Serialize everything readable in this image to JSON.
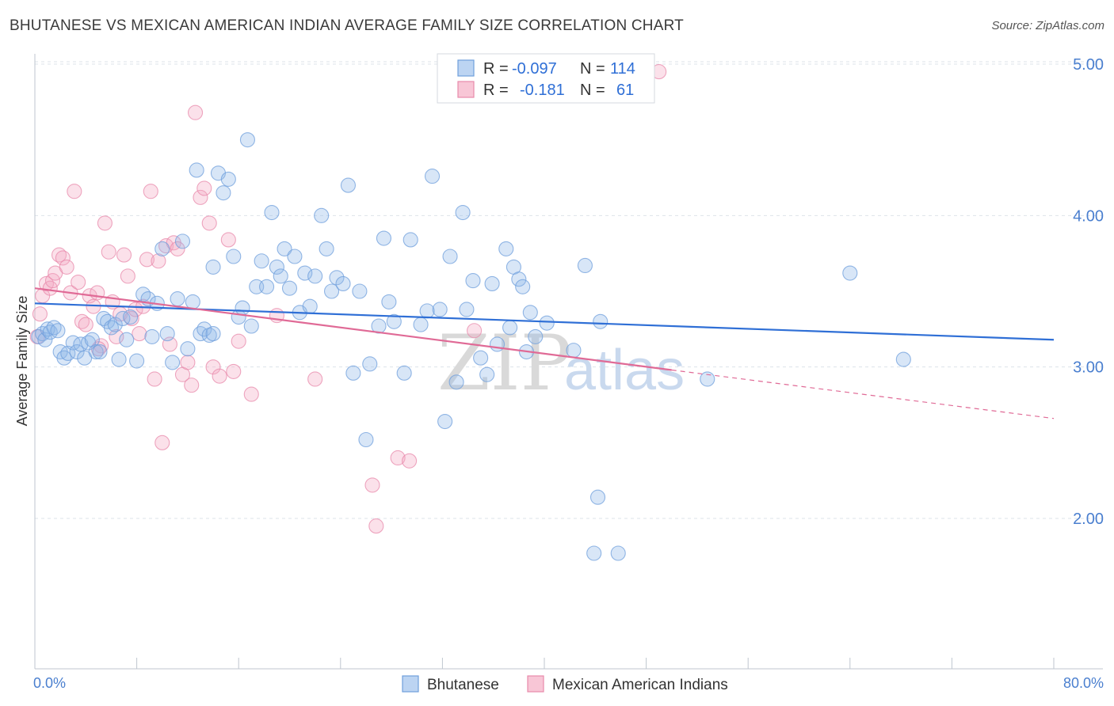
{
  "header": {
    "title": "BHUTANESE VS MEXICAN AMERICAN INDIAN AVERAGE FAMILY SIZE CORRELATION CHART",
    "source": "Source: ZipAtlas.com"
  },
  "watermark": {
    "zip": "ZIP",
    "atlas": "atlas"
  },
  "colors": {
    "blue": "#8fb6e8",
    "blue_stroke": "#6f9fdc",
    "pink": "#f3a9c2",
    "pink_stroke": "#e88aab",
    "blue_line": "#2f6fd6",
    "pink_line": "#e06a96",
    "grid": "#dde3ea",
    "tick_text": "#4a7fcf"
  },
  "legend": {
    "rows": [
      {
        "r_label": "R =",
        "r_value": "-0.097",
        "n_label": "N =",
        "n_value": "114"
      },
      {
        "r_label": "R =",
        "r_value": "-0.181",
        "n_label": "N =",
        "n_value": "61"
      }
    ]
  },
  "chart_data": {
    "type": "scatter",
    "xlabel": "",
    "ylabel": "Average Family Size",
    "xlim": [
      0,
      80
    ],
    "ylim": [
      1.0,
      5.1
    ],
    "x_tick_labels": [
      "0.0%",
      "80.0%"
    ],
    "y_ticks": [
      2.0,
      3.0,
      4.0,
      5.0
    ],
    "y_tick_labels": [
      "2.00",
      "3.00",
      "4.00",
      "5.00"
    ],
    "grid": true,
    "legend_placement": "bottom",
    "series": [
      {
        "name": "Bhutanese",
        "r": -0.097,
        "n": 114,
        "trend": {
          "x": [
            0,
            80
          ],
          "y": [
            3.42,
            3.18
          ]
        },
        "points": [
          [
            0.3,
            3.2
          ],
          [
            0.6,
            3.22
          ],
          [
            0.8,
            3.18
          ],
          [
            1.0,
            3.25
          ],
          [
            1.2,
            3.23
          ],
          [
            1.5,
            3.26
          ],
          [
            1.8,
            3.24
          ],
          [
            2.0,
            3.1
          ],
          [
            2.3,
            3.06
          ],
          [
            2.6,
            3.09
          ],
          [
            3.0,
            3.16
          ],
          [
            3.3,
            3.1
          ],
          [
            3.6,
            3.15
          ],
          [
            3.9,
            3.06
          ],
          [
            4.2,
            3.16
          ],
          [
            4.5,
            3.18
          ],
          [
            4.8,
            3.1
          ],
          [
            5.1,
            3.1
          ],
          [
            5.4,
            3.32
          ],
          [
            5.7,
            3.3
          ],
          [
            6.0,
            3.26
          ],
          [
            6.3,
            3.28
          ],
          [
            6.6,
            3.05
          ],
          [
            6.9,
            3.32
          ],
          [
            7.2,
            3.18
          ],
          [
            7.5,
            3.33
          ],
          [
            8.0,
            3.04
          ],
          [
            8.5,
            3.48
          ],
          [
            8.9,
            3.45
          ],
          [
            9.2,
            3.2
          ],
          [
            9.6,
            3.42
          ],
          [
            10.0,
            3.78
          ],
          [
            10.4,
            3.22
          ],
          [
            10.8,
            3.03
          ],
          [
            11.2,
            3.45
          ],
          [
            11.6,
            3.83
          ],
          [
            12.0,
            3.12
          ],
          [
            12.4,
            3.43
          ],
          [
            12.7,
            4.3
          ],
          [
            13.0,
            3.22
          ],
          [
            13.3,
            3.25
          ],
          [
            13.7,
            3.21
          ],
          [
            14.0,
            3.66
          ],
          [
            14.4,
            4.28
          ],
          [
            14.8,
            4.15
          ],
          [
            15.2,
            4.24
          ],
          [
            15.6,
            3.73
          ],
          [
            16.0,
            3.33
          ],
          [
            16.3,
            3.39
          ],
          [
            16.7,
            4.5
          ],
          [
            17.0,
            3.27
          ],
          [
            17.4,
            3.53
          ],
          [
            17.8,
            3.7
          ],
          [
            18.2,
            3.53
          ],
          [
            18.6,
            4.02
          ],
          [
            19.0,
            3.66
          ],
          [
            19.3,
            3.6
          ],
          [
            19.6,
            3.78
          ],
          [
            20.0,
            3.52
          ],
          [
            20.4,
            3.73
          ],
          [
            20.8,
            3.36
          ],
          [
            21.2,
            3.62
          ],
          [
            21.6,
            3.4
          ],
          [
            22.0,
            3.6
          ],
          [
            22.5,
            4.0
          ],
          [
            22.9,
            3.78
          ],
          [
            23.3,
            3.5
          ],
          [
            23.7,
            3.59
          ],
          [
            24.2,
            3.55
          ],
          [
            24.6,
            4.2
          ],
          [
            25.0,
            2.96
          ],
          [
            25.5,
            3.5
          ],
          [
            26.0,
            2.52
          ],
          [
            26.3,
            3.02
          ],
          [
            27.0,
            3.27
          ],
          [
            27.4,
            3.85
          ],
          [
            27.8,
            3.43
          ],
          [
            28.2,
            3.3
          ],
          [
            29.0,
            2.96
          ],
          [
            29.5,
            3.84
          ],
          [
            30.3,
            3.28
          ],
          [
            30.8,
            3.37
          ],
          [
            31.2,
            4.26
          ],
          [
            31.8,
            3.38
          ],
          [
            32.2,
            2.64
          ],
          [
            32.6,
            3.73
          ],
          [
            33.1,
            2.9
          ],
          [
            33.6,
            4.02
          ],
          [
            33.9,
            3.38
          ],
          [
            34.4,
            3.57
          ],
          [
            35.0,
            3.06
          ],
          [
            35.5,
            2.95
          ],
          [
            35.9,
            3.55
          ],
          [
            36.3,
            3.15
          ],
          [
            37.0,
            3.78
          ],
          [
            37.3,
            3.26
          ],
          [
            37.6,
            3.66
          ],
          [
            38.0,
            3.58
          ],
          [
            38.3,
            3.53
          ],
          [
            38.6,
            3.1
          ],
          [
            38.9,
            3.36
          ],
          [
            39.3,
            3.2
          ],
          [
            40.2,
            3.29
          ],
          [
            42.3,
            3.11
          ],
          [
            43.2,
            3.67
          ],
          [
            44.2,
            2.14
          ],
          [
            44.4,
            3.3
          ],
          [
            43.9,
            1.77
          ],
          [
            45.8,
            1.77
          ],
          [
            64.0,
            3.62
          ],
          [
            68.2,
            3.05
          ],
          [
            52.8,
            2.92
          ],
          [
            14.0,
            3.22
          ]
        ]
      },
      {
        "name": "Mexican American Indians",
        "r": -0.181,
        "n": 61,
        "trend": {
          "x": [
            0,
            50
          ],
          "y": [
            3.52,
            2.98
          ]
        },
        "trend_dashed": {
          "x": [
            50,
            80
          ],
          "y": [
            2.98,
            2.66
          ]
        },
        "points": [
          [
            0.2,
            3.2
          ],
          [
            0.4,
            3.35
          ],
          [
            0.6,
            3.47
          ],
          [
            0.9,
            3.55
          ],
          [
            1.2,
            3.52
          ],
          [
            1.4,
            3.57
          ],
          [
            1.6,
            3.62
          ],
          [
            1.9,
            3.74
          ],
          [
            2.2,
            3.72
          ],
          [
            2.5,
            3.66
          ],
          [
            2.8,
            3.49
          ],
          [
            3.1,
            4.16
          ],
          [
            3.4,
            3.56
          ],
          [
            3.7,
            3.3
          ],
          [
            4.0,
            3.28
          ],
          [
            4.3,
            3.47
          ],
          [
            4.6,
            3.4
          ],
          [
            4.9,
            3.49
          ],
          [
            5.2,
            3.14
          ],
          [
            5.5,
            3.95
          ],
          [
            5.8,
            3.76
          ],
          [
            6.1,
            3.43
          ],
          [
            6.4,
            3.2
          ],
          [
            6.7,
            3.35
          ],
          [
            7.0,
            3.74
          ],
          [
            7.3,
            3.6
          ],
          [
            7.6,
            3.32
          ],
          [
            7.9,
            3.38
          ],
          [
            8.2,
            3.22
          ],
          [
            8.5,
            3.4
          ],
          [
            8.8,
            3.71
          ],
          [
            9.1,
            4.16
          ],
          [
            9.4,
            2.92
          ],
          [
            9.7,
            3.7
          ],
          [
            10.0,
            2.5
          ],
          [
            10.3,
            3.8
          ],
          [
            10.6,
            3.15
          ],
          [
            10.9,
            3.82
          ],
          [
            11.2,
            3.78
          ],
          [
            11.6,
            2.95
          ],
          [
            12.0,
            3.03
          ],
          [
            12.3,
            2.88
          ],
          [
            12.6,
            4.68
          ],
          [
            13.0,
            4.12
          ],
          [
            13.3,
            4.18
          ],
          [
            13.7,
            3.95
          ],
          [
            14.0,
            3.0
          ],
          [
            14.5,
            2.94
          ],
          [
            15.2,
            3.84
          ],
          [
            15.6,
            2.97
          ],
          [
            16.0,
            3.17
          ],
          [
            17.0,
            2.82
          ],
          [
            19.0,
            3.34
          ],
          [
            22.0,
            2.92
          ],
          [
            26.5,
            2.22
          ],
          [
            26.8,
            1.95
          ],
          [
            28.5,
            2.4
          ],
          [
            29.4,
            2.38
          ],
          [
            34.5,
            3.24
          ],
          [
            49.0,
            4.95
          ],
          [
            5.0,
            3.12
          ]
        ]
      }
    ]
  }
}
